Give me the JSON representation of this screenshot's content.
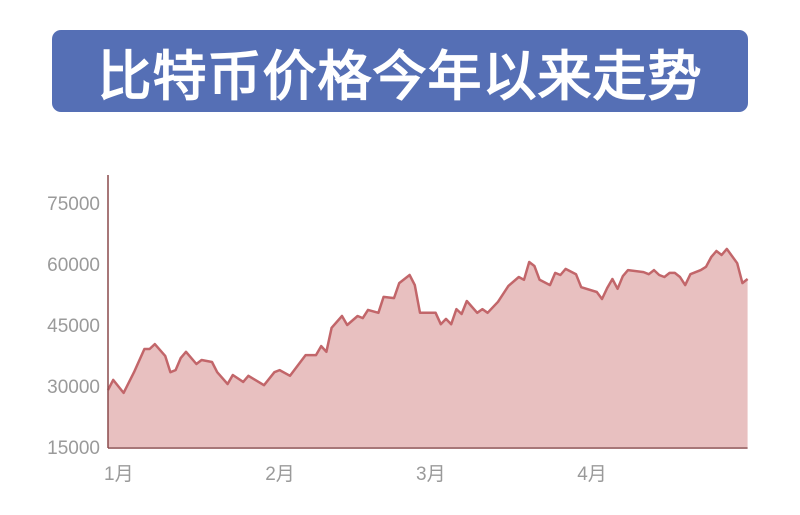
{
  "colors": {
    "title_bg": "#556fb5",
    "line": "#c2666a",
    "fill": "#e8c0c0",
    "axis": "#8a4a4c"
  },
  "chart_data": {
    "type": "area",
    "title": "比特币价格今年以来走势",
    "xlabel": "",
    "ylabel": "",
    "ylim": [
      15000,
      80000
    ],
    "y_ticks": [
      "15000",
      "30000",
      "45000",
      "60000",
      "75000"
    ],
    "x_ticks": [
      {
        "date": "2024-01-01",
        "label": "1月"
      },
      {
        "date": "2024-02-01",
        "label": "2月"
      },
      {
        "date": "2024-03-01",
        "label": "3月"
      },
      {
        "date": "2024-04-01",
        "label": "4月"
      }
    ],
    "grid": false,
    "legend": "none",
    "x": [
      "2024-01-01",
      "2024-01-02",
      "2024-01-04",
      "2024-01-06",
      "2024-01-08",
      "2024-01-09",
      "2024-01-10",
      "2024-01-12",
      "2024-01-13",
      "2024-01-14",
      "2024-01-15",
      "2024-01-16",
      "2024-01-18",
      "2024-01-19",
      "2024-01-21",
      "2024-01-22",
      "2024-01-24",
      "2024-01-25",
      "2024-01-27",
      "2024-01-28",
      "2024-01-31",
      "2024-02-02",
      "2024-02-03",
      "2024-02-05",
      "2024-02-08",
      "2024-02-10",
      "2024-02-11",
      "2024-02-12",
      "2024-02-13",
      "2024-02-15",
      "2024-02-16",
      "2024-02-18",
      "2024-02-19",
      "2024-02-20",
      "2024-02-22",
      "2024-02-23",
      "2024-02-25",
      "2024-02-26",
      "2024-02-28",
      "2024-02-29",
      "2024-03-01",
      "2024-03-04",
      "2024-03-05",
      "2024-03-06",
      "2024-03-07",
      "2024-03-08",
      "2024-03-09",
      "2024-03-10",
      "2024-03-12",
      "2024-03-13",
      "2024-03-14",
      "2024-03-16",
      "2024-03-18",
      "2024-03-20",
      "2024-03-21",
      "2024-03-22",
      "2024-03-23",
      "2024-03-24",
      "2024-03-26",
      "2024-03-27",
      "2024-03-28",
      "2024-03-29",
      "2024-03-31",
      "2024-04-01",
      "2024-04-04",
      "2024-04-05",
      "2024-04-06",
      "2024-04-07",
      "2024-04-08",
      "2024-04-09",
      "2024-04-10",
      "2024-04-13",
      "2024-04-14",
      "2024-04-15",
      "2024-04-16",
      "2024-04-17",
      "2024-04-18",
      "2024-04-19",
      "2024-04-20",
      "2024-04-21",
      "2024-04-22",
      "2024-04-24",
      "2024-04-25",
      "2024-04-26",
      "2024-04-27",
      "2024-04-28",
      "2024-04-29",
      "2024-05-01",
      "2024-05-02",
      "2024-05-03"
    ],
    "values": [
      29000,
      31500,
      28300,
      33400,
      39100,
      39100,
      40300,
      37400,
      33400,
      33900,
      36900,
      38400,
      35400,
      36400,
      35900,
      33400,
      30500,
      32700,
      31000,
      32500,
      30200,
      33400,
      33900,
      32500,
      37600,
      37600,
      39800,
      38400,
      44300,
      47200,
      45000,
      47200,
      46700,
      48700,
      48000,
      51900,
      51600,
      55300,
      57300,
      54800,
      48000,
      48000,
      45200,
      46500,
      45200,
      48900,
      47700,
      50900,
      48000,
      48900,
      48000,
      50700,
      54600,
      56800,
      56100,
      60500,
      59500,
      56100,
      54800,
      57800,
      57300,
      58800,
      57500,
      54300,
      53100,
      51400,
      54100,
      56300,
      53900,
      57000,
      58500,
      58000,
      57500,
      58500,
      57300,
      56800,
      57800,
      57800,
      56800,
      54800,
      57500,
      58500,
      59300,
      61700,
      63200,
      62200,
      63700,
      60200,
      55300,
      56300
    ]
  }
}
